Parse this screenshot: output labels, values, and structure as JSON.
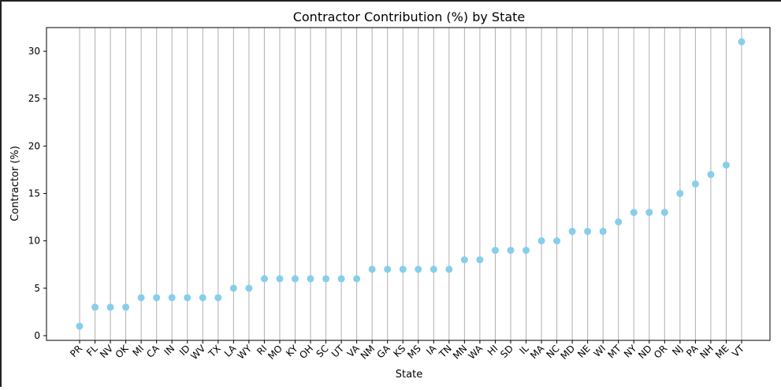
{
  "chart_data": {
    "type": "scatter",
    "title": "Contractor Contribution (%) by State",
    "xlabel": "State",
    "ylabel": "Contractor (%)",
    "ylim": [
      -0.5,
      32.5
    ],
    "yticks": [
      0,
      5,
      10,
      15,
      20,
      25,
      30
    ],
    "grid": "vertical",
    "marker_color": "#87CEEB",
    "grid_color": "#b0b0b0",
    "categories": [
      "PR",
      "FL",
      "NV",
      "OK",
      "MI",
      "CA",
      "IN",
      "ID",
      "WV",
      "TX",
      "LA",
      "WY",
      "RI",
      "MO",
      "KY",
      "OH",
      "SC",
      "UT",
      "VA",
      "NM",
      "GA",
      "KS",
      "MS",
      "IA",
      "TN",
      "MN",
      "WA",
      "HI",
      "SD",
      "IL",
      "MA",
      "NC",
      "MD",
      "NE",
      "WI",
      "MT",
      "NY",
      "ND",
      "OR",
      "NJ",
      "PA",
      "NH",
      "ME",
      "VT"
    ],
    "values": [
      1,
      3,
      3,
      3,
      4,
      4,
      4,
      4,
      4,
      4,
      5,
      5,
      6,
      6,
      6,
      6,
      6,
      6,
      6,
      7,
      7,
      7,
      7,
      7,
      7,
      8,
      8,
      9,
      9,
      9,
      10,
      10,
      11,
      11,
      11,
      12,
      13,
      13,
      13,
      15,
      16,
      17,
      18,
      31
    ]
  }
}
